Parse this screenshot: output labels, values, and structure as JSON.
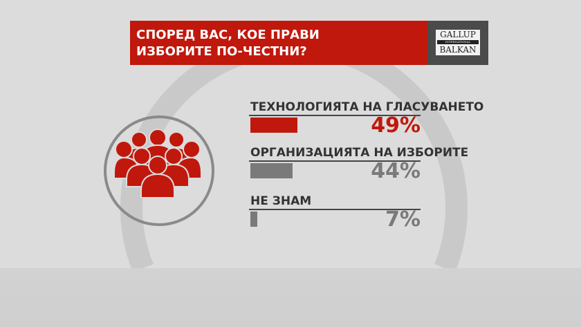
{
  "title": "СПОРЕД ВАС, КОЕ ПРАВИ ИЗБОРИТЕ ПО-ЧЕСТНИ?",
  "title_lines": [
    "СПОРЕД ВАС, КОЕ ПРАВИ",
    "ИЗБОРИТЕ ПО-ЧЕСТНИ?"
  ],
  "logo": {
    "line1": "GALLUP",
    "line2": "INTERNATIONAL",
    "line3": "BALKAN"
  },
  "icon": "people-group-icon",
  "colors": {
    "accent": "#c0180c",
    "secondary": "#7a7a7a",
    "logo_bg": "#4b4b4b"
  },
  "chart_data": {
    "type": "bar",
    "orientation": "horizontal",
    "categories": [
      "ТЕХНОЛОГИЯТА НА ГЛАСУВАНЕТО",
      "ОРГАНИЗАЦИЯТА НА ИЗБОРИТЕ",
      "НЕ ЗНАМ"
    ],
    "values": [
      49,
      44,
      7
    ],
    "labels": [
      "49%",
      "44%",
      "7%"
    ],
    "bar_colors": [
      "#c0180c",
      "#7a7a7a",
      "#7a7a7a"
    ],
    "title": "СПОРЕД ВАС, КОЕ ПРАВИ ИЗБОРИТЕ ПО-ЧЕСТНИ?",
    "unit": "%"
  }
}
